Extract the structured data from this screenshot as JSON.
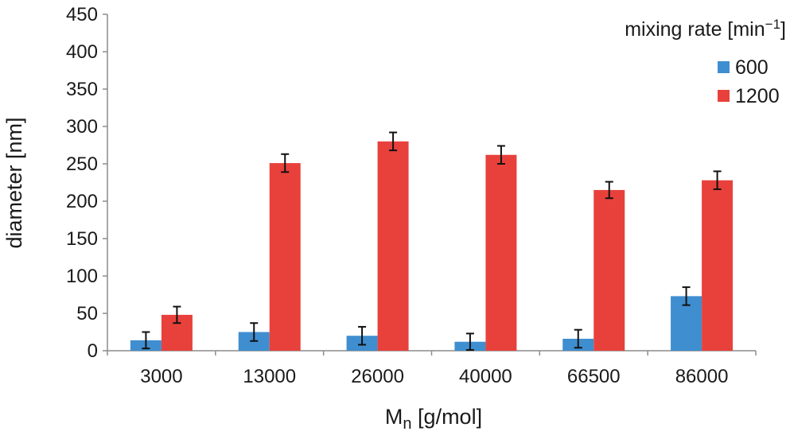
{
  "chart_data": {
    "type": "bar",
    "categories": [
      "3000",
      "13000",
      "26000",
      "40000",
      "66500",
      "86000"
    ],
    "series": [
      {
        "name": "600",
        "color": "#3F8ED0",
        "values": [
          14,
          25,
          20,
          12,
          16,
          73
        ],
        "errors": [
          11,
          12,
          12,
          11,
          12,
          12
        ]
      },
      {
        "name": "1200",
        "color": "#E8413C",
        "values": [
          48,
          251,
          280,
          262,
          215,
          228
        ],
        "errors": [
          11,
          12,
          12,
          12,
          11,
          12
        ]
      }
    ],
    "xlabel": {
      "main": "M",
      "sub": "n",
      "rest": " [g/mol]"
    },
    "ylabel": "diameter [nm]",
    "ylim": [
      0,
      450
    ],
    "yticks": [
      0,
      50,
      100,
      150,
      200,
      250,
      300,
      350,
      400,
      450
    ],
    "grid": false,
    "legend": {
      "title_main": "mixing rate [min",
      "title_sup": "−1",
      "title_end": "]",
      "placement": "top-right"
    }
  }
}
